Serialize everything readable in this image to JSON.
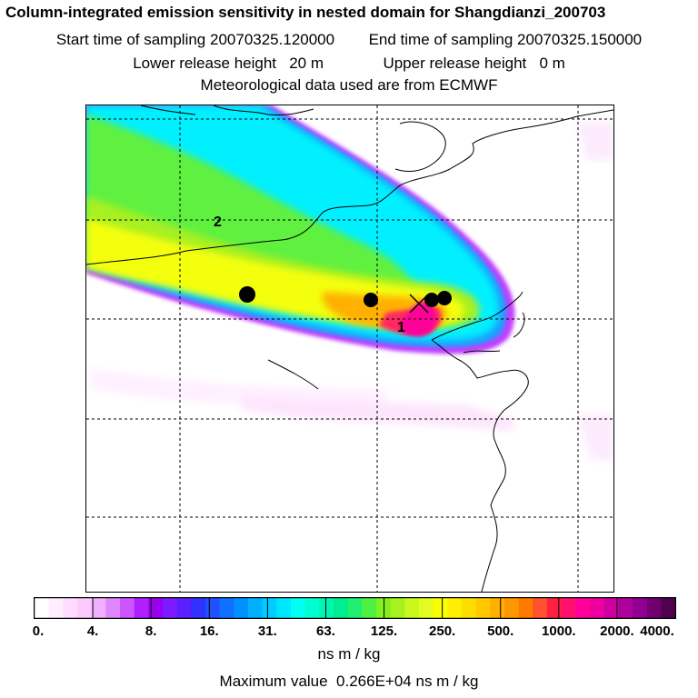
{
  "header": {
    "title": "Column-integrated emission sensitivity in nested domain for Shangdianzi_200703",
    "start_label": "Start time of sampling",
    "start_value": "20070325.120000",
    "end_label": "End time of sampling",
    "end_value": "20070325.150000",
    "lower_label": "Lower release height",
    "lower_value": "20 m",
    "upper_label": "Upper release height",
    "upper_value": "0 m",
    "met_line": "Meteorological data used are from ECMWF"
  },
  "map": {
    "labels": [
      "1",
      "2"
    ],
    "markers_count": 4
  },
  "colorbar": {
    "ticks": [
      "0.",
      "4.",
      "8.",
      "16.",
      "31.",
      "63.",
      "125.",
      "250.",
      "500.",
      "1000.",
      "2000.",
      "4000."
    ],
    "colors": [
      "#ffffff",
      "#ffeeff",
      "#ffdcff",
      "#ffc8ff",
      "#f0b0ff",
      "#dd88ff",
      "#cc55ff",
      "#b020ff",
      "#9900ee",
      "#7a1cff",
      "#5a20ff",
      "#3030ff",
      "#2050ff",
      "#1070ff",
      "#0090ff",
      "#00b0ff",
      "#00ccff",
      "#00e6ff",
      "#00fff0",
      "#00ffd0",
      "#00f5b0",
      "#00ee90",
      "#20f070",
      "#50f040",
      "#80f020",
      "#a8f020",
      "#c8f820",
      "#e0fc20",
      "#f8ff00",
      "#ffee00",
      "#ffdd00",
      "#ffc800",
      "#ffb000",
      "#ff9800",
      "#ff7800",
      "#ff5030",
      "#ff2040",
      "#ff1070",
      "#ff0099",
      "#ee00a0",
      "#d000a0",
      "#b0009c",
      "#900090",
      "#700070",
      "#500050"
    ],
    "units": "ns m / kg"
  },
  "footer": {
    "max_label": "Maximum value",
    "max_value": "0.266E+04 ns m / kg"
  }
}
